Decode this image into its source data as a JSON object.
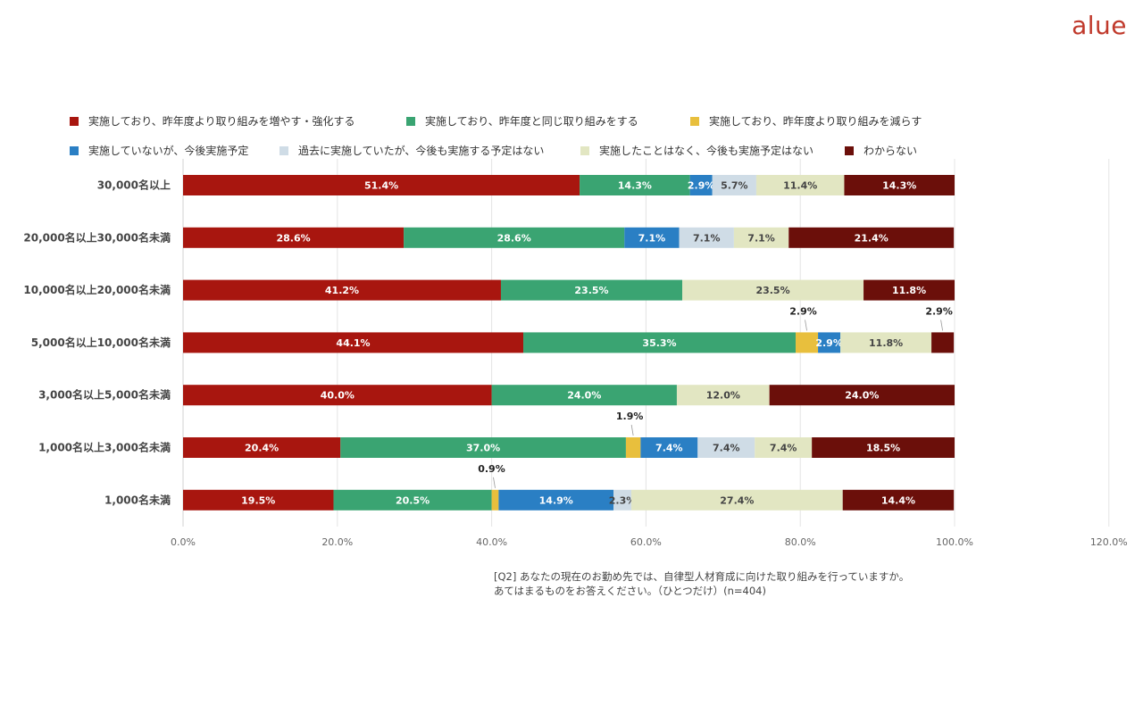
{
  "brand": {
    "logo_text": "alue",
    "logo_color": "#c0392b"
  },
  "footnote": {
    "line1": "[Q2] あなたの現在のお勤め先では、自律型人材育成に向けた取り組みを行っていますか。",
    "line2": "あてはまるものをお答えください。（ひとつだけ）(n=404)"
  },
  "chart_data": {
    "type": "bar",
    "orientation": "horizontal",
    "stacked": true,
    "title": "",
    "xlabel": "",
    "ylabel": "",
    "xlim": [
      0,
      120
    ],
    "x_ticks": [
      "0.0%",
      "20.0%",
      "40.0%",
      "60.0%",
      "80.0%",
      "100.0%",
      "120.0%"
    ],
    "grid": true,
    "legend_position": "top",
    "categories": [
      "30,000名以上",
      "20,000名以上30,000名未満",
      "10,000名以上20,000名未満",
      "5,000名以上10,000名未満",
      "3,000名以上5,000名未満",
      "1,000名以上3,000名未満",
      "1,000名未満"
    ],
    "series": [
      {
        "name": "実施しており、昨年度より取り組みを増やす・強化する",
        "color": "#a8160f",
        "label_color": "#ffffff",
        "values": [
          51.4,
          28.6,
          41.2,
          44.1,
          40.0,
          20.4,
          19.5
        ]
      },
      {
        "name": "実施しており、昨年度と同じ取り組みをする",
        "color": "#3aa472",
        "label_color": "#ffffff",
        "values": [
          14.3,
          28.6,
          23.5,
          35.3,
          24.0,
          37.0,
          20.5
        ]
      },
      {
        "name": "実施しており、昨年度より取り組みを減らす",
        "color": "#e8bf3d",
        "label_color": "#333333",
        "values": [
          0,
          0,
          0,
          2.9,
          0,
          1.9,
          0.9
        ]
      },
      {
        "name": "実施していないが、今後実施予定",
        "color": "#2a7fc4",
        "label_color": "#ffffff",
        "values": [
          2.9,
          7.1,
          0,
          2.9,
          0,
          7.4,
          14.9
        ]
      },
      {
        "name": "過去に実施していたが、今後も実施する予定はない",
        "color": "#cfdce6",
        "label_color": "#444444",
        "values": [
          5.7,
          7.1,
          0,
          0,
          0,
          7.4,
          2.3
        ]
      },
      {
        "name": "実施したことはなく、今後も実施予定はない",
        "color": "#e2e6c2",
        "label_color": "#444444",
        "values": [
          11.4,
          7.1,
          23.5,
          11.8,
          12.0,
          7.4,
          27.4
        ]
      },
      {
        "name": "わからない",
        "color": "#6b0f0a",
        "label_color": "#ffffff",
        "values": [
          14.3,
          21.4,
          11.8,
          2.9,
          24.0,
          18.5,
          14.4
        ]
      }
    ],
    "callouts": [
      {
        "category_index": 3,
        "series_index": 2,
        "text": "2.9%"
      },
      {
        "category_index": 3,
        "series_index": 6,
        "text": "2.9%"
      },
      {
        "category_index": 5,
        "series_index": 2,
        "text": "1.9%"
      },
      {
        "category_index": 6,
        "series_index": 2,
        "text": "0.9%"
      }
    ]
  }
}
